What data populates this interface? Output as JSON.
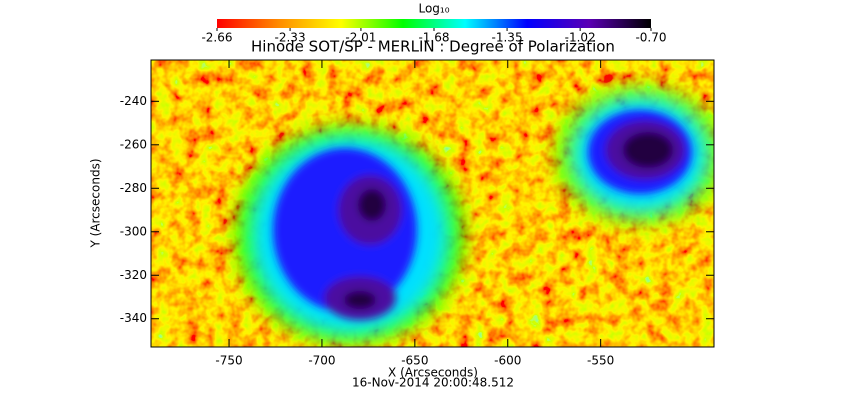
{
  "chart_data": {
    "type": "image",
    "title": "Hinode SOT/SP - MERLIN : Degree of Polarization",
    "subtitle": "16-Nov-2014 20:00:48.512",
    "x_label": "X (Arcseconds)",
    "y_label": "Y (Arcseconds)",
    "xlim": [
      -792,
      -489
    ],
    "xticks": [
      -750,
      -700,
      -650,
      -600,
      -550
    ],
    "ylim": [
      -353,
      -221
    ],
    "yticks": [
      -240,
      -260,
      -280,
      -300,
      -320,
      -340
    ],
    "colorbar_label": "Log₁₀",
    "colorbar_lim": [
      -2.66,
      -0.7
    ],
    "colorbar_ticks": [
      -2.66,
      -2.33,
      -2.01,
      -1.68,
      -1.35,
      -1.02,
      {
        "value": -0.7,
        "label": "-0.70"
      }
    ],
    "colormap": [
      "#ff0000",
      "#ff8c00",
      "#ffff00",
      "#00ff00",
      "#00ffff",
      "#0000ff",
      "#5a00b4",
      "#000000"
    ]
  }
}
